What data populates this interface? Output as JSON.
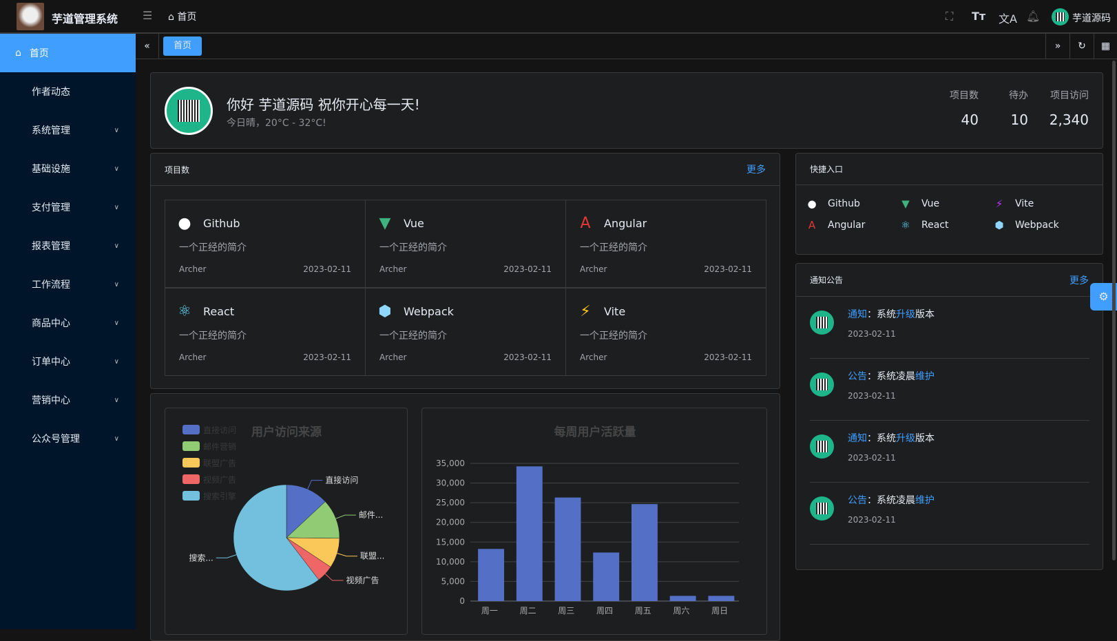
{
  "app": {
    "title": "芋道管理系统",
    "breadcrumb": "首页",
    "user": "芋道源码"
  },
  "header_icons": [
    "fullscreen-icon",
    "font-size-icon",
    "translate-icon",
    "bell-icon"
  ],
  "sidebar": {
    "items": [
      {
        "label": "首页",
        "active": true
      },
      {
        "label": "作者动态"
      },
      {
        "label": "系统管理",
        "sub": true
      },
      {
        "label": "基础设施",
        "sub": true
      },
      {
        "label": "支付管理",
        "sub": true
      },
      {
        "label": "报表管理",
        "sub": true
      },
      {
        "label": "工作流程",
        "sub": true
      },
      {
        "label": "商品中心",
        "sub": true
      },
      {
        "label": "订单中心",
        "sub": true
      },
      {
        "label": "营销中心",
        "sub": true
      },
      {
        "label": "公众号管理",
        "sub": true
      }
    ]
  },
  "tabs": [
    {
      "label": "首页",
      "active": true
    }
  ],
  "welcome": {
    "greeting": "你好 芋道源码 祝你开心每一天!",
    "weather": "今日晴，20°C - 32°C!",
    "stats": [
      {
        "label": "项目数",
        "value": "40"
      },
      {
        "label": "待办",
        "value": "10"
      },
      {
        "label": "项目访问",
        "value": "2,340"
      }
    ]
  },
  "projects": {
    "title": "项目数",
    "more": "更多",
    "items": [
      {
        "name": "Github",
        "desc": "一个正经的简介",
        "author": "Archer",
        "date": "2023-02-11",
        "icon": "github-icon",
        "color": "#ffffff"
      },
      {
        "name": "Vue",
        "desc": "一个正经的简介",
        "author": "Archer",
        "date": "2023-02-11",
        "icon": "vue-icon",
        "color": "#3fb27f"
      },
      {
        "name": "Angular",
        "desc": "一个正经的简介",
        "author": "Archer",
        "date": "2023-02-11",
        "icon": "angular-icon",
        "color": "#e53935"
      },
      {
        "name": "React",
        "desc": "一个正经的简介",
        "author": "Archer",
        "date": "2023-02-11",
        "icon": "react-icon",
        "color": "#61dafb"
      },
      {
        "name": "Webpack",
        "desc": "一个正经的简介",
        "author": "Archer",
        "date": "2023-02-11",
        "icon": "webpack-icon",
        "color": "#8ed6fb"
      },
      {
        "name": "Vite",
        "desc": "一个正经的简介",
        "author": "Archer",
        "date": "2023-02-11",
        "icon": "vite-icon",
        "color": "#ffc517"
      }
    ]
  },
  "quick": {
    "title": "快捷入口",
    "items": [
      {
        "name": "Github",
        "color": "#ffffff"
      },
      {
        "name": "Vue",
        "color": "#3fb27f"
      },
      {
        "name": "Vite",
        "color": "#bd34fe"
      },
      {
        "name": "Angular",
        "color": "#e53935"
      },
      {
        "name": "React",
        "color": "#61dafb"
      },
      {
        "name": "Webpack",
        "color": "#8ed6fb"
      }
    ]
  },
  "notices": {
    "title": "通知公告",
    "more": "更多",
    "items": [
      {
        "type": "通知",
        "pre": "：系统",
        "hl": "升级",
        "post": "版本",
        "date": "2023-02-11"
      },
      {
        "type": "公告",
        "pre": "：系统凌晨",
        "hl": "维护",
        "post": "",
        "date": "2023-02-11"
      },
      {
        "type": "通知",
        "pre": "：系统",
        "hl": "升级",
        "post": "版本",
        "date": "2023-02-11"
      },
      {
        "type": "公告",
        "pre": "：系统凌晨",
        "hl": "维护",
        "post": "",
        "date": "2023-02-11"
      }
    ]
  },
  "chart_data": [
    {
      "type": "pie",
      "title": "用户访问来源",
      "legend": "top-left",
      "slices": [
        {
          "name": "直接访问",
          "value": 335,
          "label": "直接访问",
          "color": "#5470c6"
        },
        {
          "name": "邮件营销",
          "value": 310,
          "label": "邮件...",
          "color": "#91cc75"
        },
        {
          "name": "联盟广告",
          "value": 234,
          "label": "联盟...",
          "color": "#fac858"
        },
        {
          "name": "视频广告",
          "value": 135,
          "label": "视频广告",
          "color": "#ee6666"
        },
        {
          "name": "搜索引擎",
          "value": 1548,
          "label": "搜索...",
          "color": "#73c0de"
        }
      ]
    },
    {
      "type": "bar",
      "title": "每周用户活跃量",
      "categories": [
        "周一",
        "周二",
        "周三",
        "周四",
        "周五",
        "周六",
        "周日"
      ],
      "values": [
        13253,
        34235,
        26321,
        12340,
        24643,
        1322,
        1324
      ],
      "ylim": [
        0,
        35000
      ],
      "yticks": [
        "0",
        "5,000",
        "10,000",
        "15,000",
        "20,000",
        "25,000",
        "30,000",
        "35,000"
      ],
      "grid": true,
      "color": "#5470c6"
    }
  ]
}
